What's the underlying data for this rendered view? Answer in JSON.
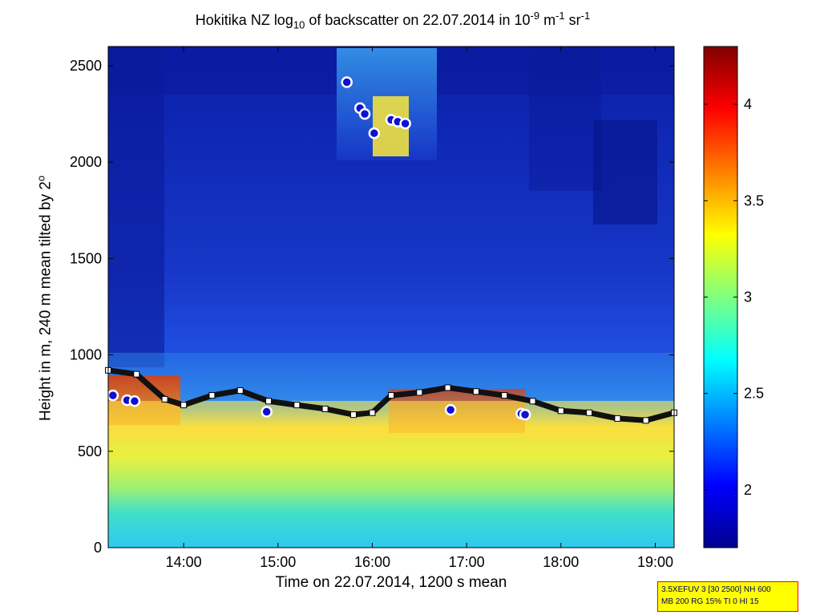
{
  "chart_data": {
    "type": "heatmap",
    "title_main": "Hokitika NZ log",
    "title_sub": "10",
    "title_mid": " of backscatter on 22.07.2014 in 10",
    "title_sup1": "-9",
    "title_unit1": " m",
    "title_sup2": "-1",
    "title_unit2": " sr",
    "title_sup3": "-1",
    "xlabel": "Time on 22.07.2014, 1200 s mean",
    "ylabel_main": "Height in m, 240 m mean tilted by 2",
    "ylabel_sup": "o",
    "x_ticks": [
      "14:00",
      "15:00",
      "16:00",
      "17:00",
      "18:00",
      "19:00"
    ],
    "x_tick_hours": [
      14,
      15,
      16,
      17,
      18,
      19
    ],
    "xlim_hours": [
      13.2,
      19.2
    ],
    "y_ticks": [
      0,
      500,
      1000,
      1500,
      2000,
      2500
    ],
    "ylim": [
      0,
      2600
    ],
    "colorbar": {
      "ticks": [
        "2",
        "2.5",
        "3",
        "3.5",
        "4"
      ],
      "tick_values": [
        2,
        2.5,
        3,
        3.5,
        4
      ],
      "range": [
        1.7,
        4.3
      ],
      "colormap": "jet"
    },
    "cloud_base_line": {
      "x_hours": [
        13.2,
        13.5,
        13.8,
        14.0,
        14.3,
        14.6,
        14.9,
        15.2,
        15.5,
        15.8,
        16.0,
        16.2,
        16.5,
        16.8,
        17.1,
        17.4,
        17.7,
        18.0,
        18.3,
        18.6,
        18.9,
        19.2
      ],
      "height_m": [
        920,
        900,
        770,
        740,
        790,
        815,
        760,
        740,
        720,
        690,
        700,
        790,
        805,
        830,
        810,
        790,
        760,
        710,
        700,
        670,
        660,
        700
      ]
    },
    "cloud_tops_markers": {
      "x_hours": [
        13.25,
        13.4,
        13.48,
        14.88,
        16.83,
        17.58,
        17.62
      ],
      "height_m": [
        790,
        765,
        760,
        705,
        715,
        695,
        690
      ]
    },
    "upper_cloud_markers": {
      "x_hours": [
        15.73,
        15.87,
        15.92,
        16.02,
        16.2,
        16.27,
        16.35
      ],
      "height_m": [
        2415,
        2280,
        2250,
        2150,
        2220,
        2210,
        2200
      ]
    },
    "info_box": {
      "line1": "3.5XEFUV 3 [30 2500] NH 600",
      "line2": "MB 200 RG 15% TI 0 HI 15"
    }
  }
}
